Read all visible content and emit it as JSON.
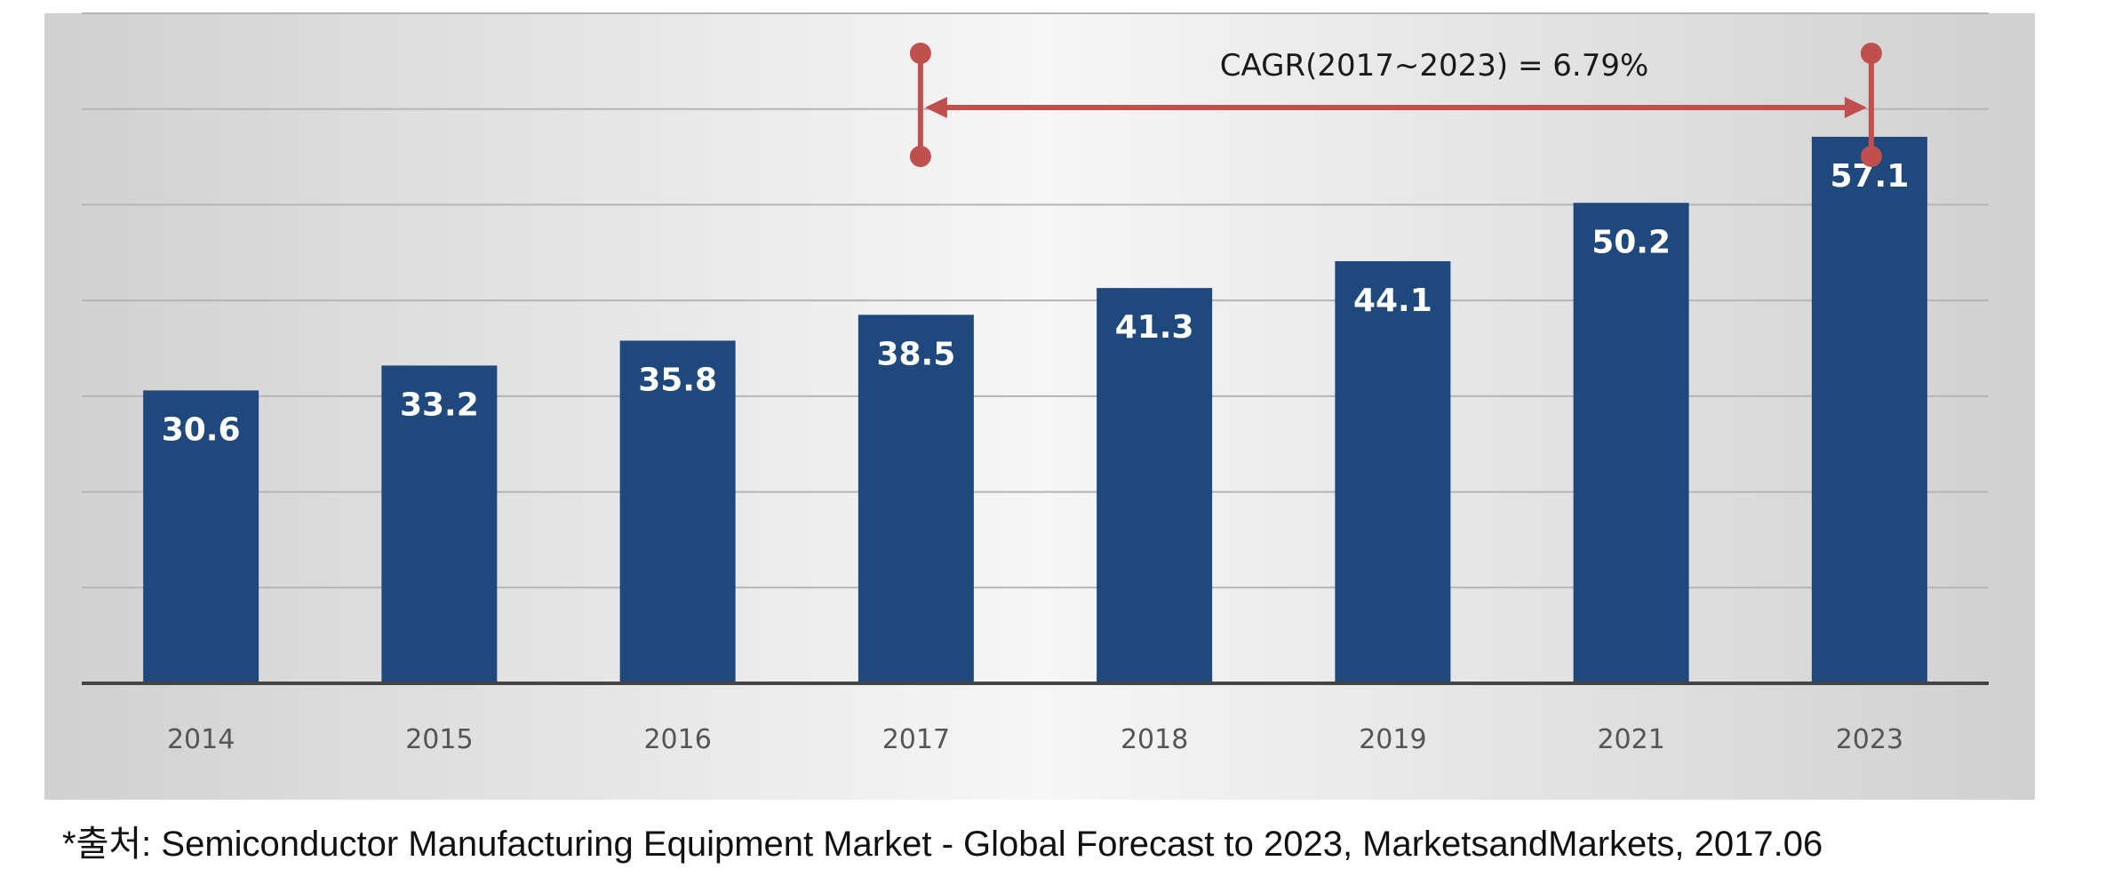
{
  "chart_data": {
    "type": "bar",
    "categories": [
      "2014",
      "2015",
      "2016",
      "2017",
      "2018",
      "2019",
      "2021",
      "2023"
    ],
    "values": [
      30.6,
      33.2,
      35.8,
      38.5,
      41.3,
      44.1,
      50.2,
      57.1
    ],
    "title": "",
    "xlabel": "",
    "ylabel": "",
    "ylim": [
      0,
      70
    ],
    "grid": true,
    "gridline_step": 10,
    "value_labels": [
      "30.6",
      "33.2",
      "35.8",
      "38.5",
      "41.3",
      "44.1",
      "50.2",
      "57.1"
    ],
    "annotation": {
      "text": "CAGR(2017~2023) = 6.79%",
      "from_category": "2017",
      "to_category": "2023",
      "color": "#c0504d"
    },
    "bar_color": "#1f497d"
  },
  "source": {
    "text": "*출처: Semiconductor Manufacturing Equipment Market - Global Forecast to 2023, MarketsandMarkets, 2017.06"
  }
}
